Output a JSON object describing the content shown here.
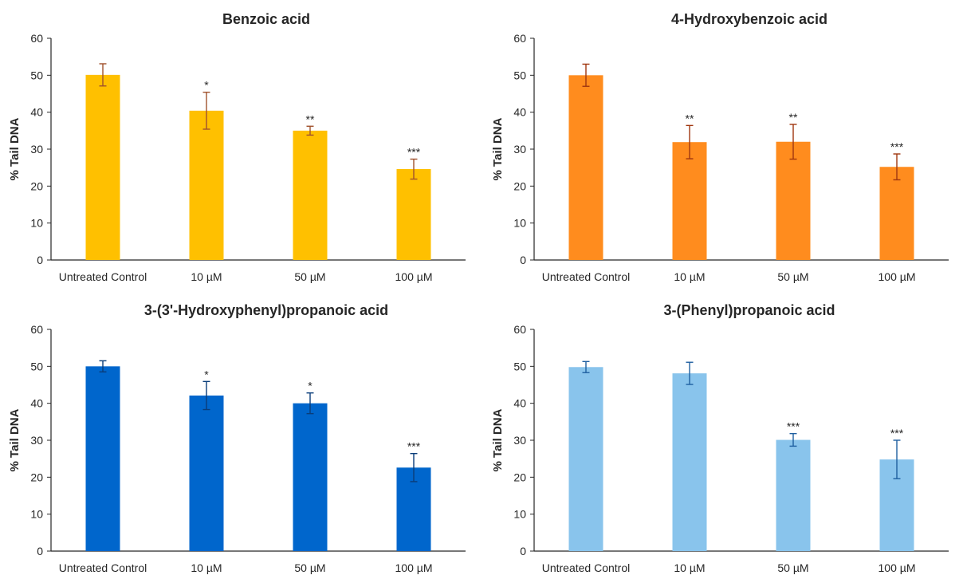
{
  "chart_data": [
    {
      "type": "bar",
      "title": "Benzoic acid",
      "ylabel": "% Tail DNA",
      "xlabel": "",
      "ylim": [
        0,
        60
      ],
      "yticks": [
        0,
        10,
        20,
        30,
        40,
        50,
        60
      ],
      "grid": false,
      "categories": [
        "Untreated Control",
        "10 µM",
        "50 µM",
        "100 µM"
      ],
      "values": [
        50.1,
        40.4,
        35.0,
        24.6
      ],
      "errors": [
        3.0,
        5.0,
        1.2,
        2.7
      ],
      "significance": [
        "",
        "*",
        "**",
        "***"
      ],
      "bar_color": "#FFC000",
      "error_color": "#A0522D"
    },
    {
      "type": "bar",
      "title": "4-Hydroxybenzoic acid",
      "ylabel": "% Tail DNA",
      "xlabel": "",
      "ylim": [
        0,
        60
      ],
      "yticks": [
        0,
        10,
        20,
        30,
        40,
        50,
        60
      ],
      "grid": false,
      "categories": [
        "Untreated Control",
        "10 µM",
        "50 µM",
        "100 µM"
      ],
      "values": [
        50.0,
        31.9,
        32.0,
        25.2
      ],
      "errors": [
        3.0,
        4.5,
        4.7,
        3.5
      ],
      "significance": [
        "",
        "**",
        "**",
        "***"
      ],
      "bar_color": "#FF8C1E",
      "error_color": "#A0360F"
    },
    {
      "type": "bar",
      "title": "3-(3'-Hydroxyphenyl)propanoic acid",
      "ylabel": "% Tail DNA",
      "xlabel": "",
      "ylim": [
        0,
        60
      ],
      "yticks": [
        0,
        10,
        20,
        30,
        40,
        50,
        60
      ],
      "grid": false,
      "categories": [
        "Untreated Control",
        "10 µM",
        "50 µM",
        "100 µM"
      ],
      "values": [
        50.0,
        42.1,
        40.0,
        22.6
      ],
      "errors": [
        1.5,
        3.8,
        2.8,
        3.8
      ],
      "significance": [
        "",
        "*",
        "*",
        "***"
      ],
      "bar_color": "#0066CC",
      "error_color": "#0A3D7A"
    },
    {
      "type": "bar",
      "title": "3-(Phenyl)propanoic acid",
      "ylabel": "% Tail DNA",
      "xlabel": "",
      "ylim": [
        0,
        60
      ],
      "yticks": [
        0,
        10,
        20,
        30,
        40,
        50,
        60
      ],
      "grid": false,
      "categories": [
        "Untreated Control",
        "10 µM",
        "50 µM",
        "100 µM"
      ],
      "values": [
        49.8,
        48.1,
        30.1,
        24.8
      ],
      "errors": [
        1.5,
        3.0,
        1.7,
        5.2
      ],
      "significance": [
        "",
        "",
        "***",
        "***"
      ],
      "bar_color": "#89C4EC",
      "error_color": "#1F5FA0"
    }
  ]
}
